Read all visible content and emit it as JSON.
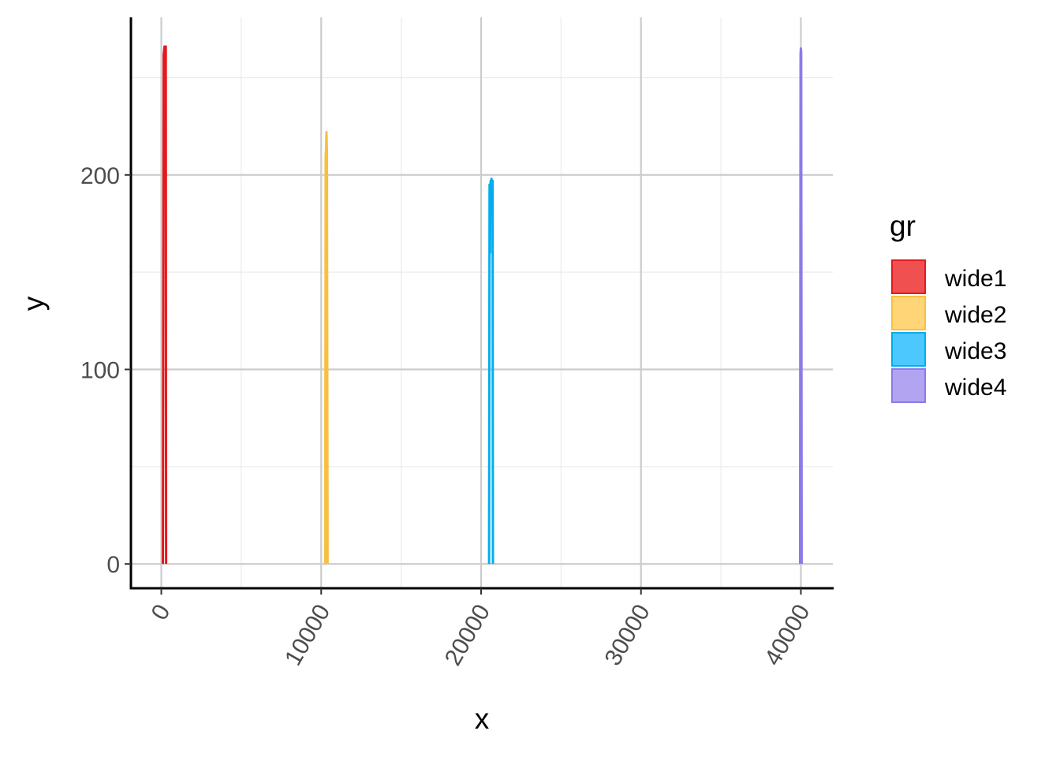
{
  "chart_data": {
    "type": "line",
    "xlabel": "x",
    "ylabel": "y",
    "xlim": [
      -1900,
      42000
    ],
    "ylim": [
      -12.5,
      281
    ],
    "x_ticks": [
      0,
      10000,
      20000,
      30000,
      40000
    ],
    "x_tick_labels": [
      "0",
      "10000",
      "20000",
      "30000",
      "40000"
    ],
    "x_minor_ticks": [
      5000,
      15000,
      25000,
      35000
    ],
    "y_ticks": [
      0,
      100,
      200
    ],
    "y_tick_labels": [
      "0",
      "100",
      "200"
    ],
    "y_minor_ticks": [
      50,
      150,
      250
    ],
    "grid": true,
    "legend": {
      "title": "gr",
      "position": "right"
    },
    "series": [
      {
        "name": "wide1",
        "color": "#E41A1C",
        "fill": "#F05050",
        "x": [
          100,
          150,
          180,
          200,
          220,
          250,
          280,
          300
        ],
        "y": [
          0,
          262,
          264,
          266,
          265,
          263,
          266,
          0
        ]
      },
      {
        "name": "wide2",
        "color": "#F7C043",
        "fill": "#FFD578",
        "x": [
          10250,
          10280,
          10300,
          10330,
          10360,
          10400
        ],
        "y": [
          0,
          210,
          213,
          222,
          212,
          0
        ]
      },
      {
        "name": "wide3",
        "color": "#00AEEF",
        "fill": "#4DC8FF",
        "x": [
          20500,
          20530,
          20560,
          20580,
          20600,
          20620,
          20650,
          20680,
          20700,
          20720,
          20740
        ],
        "y": [
          0,
          195,
          160,
          193,
          197,
          195,
          198,
          196,
          194,
          197,
          0
        ]
      },
      {
        "name": "wide4",
        "color": "#8B7BE8",
        "fill": "#B3A4F2",
        "x": [
          39950,
          39980,
          40000,
          40020,
          40050
        ],
        "y": [
          0,
          262,
          265,
          263,
          0
        ]
      }
    ]
  }
}
